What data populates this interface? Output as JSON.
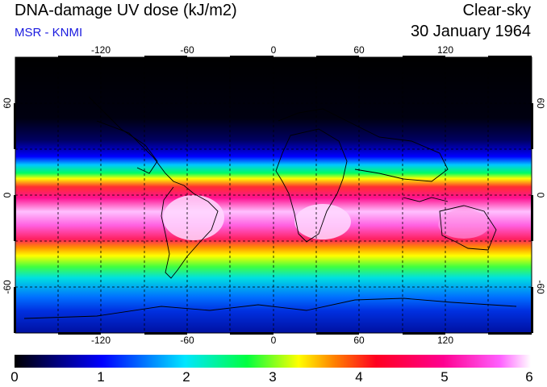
{
  "header": {
    "title": "DNA-damage UV dose (kJ/m2)",
    "source": "MSR - KNMI",
    "condition": "Clear-sky",
    "date": "30 January 1964"
  },
  "map": {
    "lon_ticks": [
      "-120",
      "-60",
      "0",
      "60",
      "120"
    ],
    "lat_ticks_left": [
      "60",
      "0",
      "-60"
    ],
    "lat_ticks_right": [
      "60",
      "0",
      "-60"
    ],
    "colors": {
      "frame": "#000000",
      "gridline": "#000000",
      "coastline": "#000000"
    }
  },
  "colorbar": {
    "labels": [
      "0",
      "1",
      "2",
      "3",
      "4",
      "5",
      "6"
    ],
    "min": 0,
    "max": 6,
    "stops": [
      "#000000",
      "#00007a",
      "#0000ff",
      "#00c8ff",
      "#00ff80",
      "#ffff00",
      "#ff8000",
      "#ff0040",
      "#ff0090",
      "#ff60ff",
      "#ffffff"
    ]
  }
}
